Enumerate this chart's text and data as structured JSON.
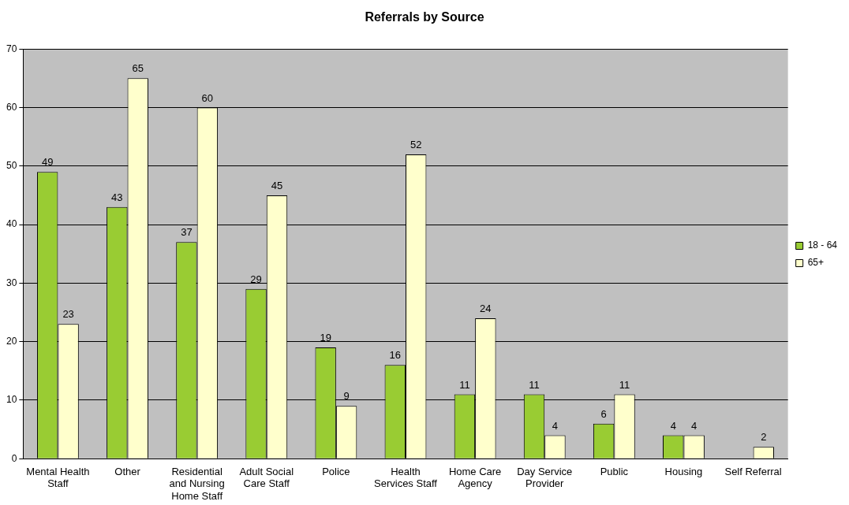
{
  "chart_data": {
    "type": "bar",
    "title": "Referrals by Source",
    "categories": [
      "Mental Health Staff",
      "Other",
      "Residential and Nursing Home Staff",
      "Adult Social Care Staff",
      "Police",
      "Health Services Staff",
      "Home Care Agency",
      "Day Service Provider",
      "Public",
      "Housing",
      "Self Referral"
    ],
    "series": [
      {
        "name": "18 - 64",
        "color": "#99cc33",
        "values": [
          49,
          43,
          37,
          29,
          19,
          16,
          11,
          11,
          6,
          4,
          null
        ]
      },
      {
        "name": "65+",
        "color": "#ffffcc",
        "values": [
          23,
          65,
          60,
          45,
          9,
          52,
          24,
          4,
          11,
          4,
          2
        ]
      }
    ],
    "ylim": [
      0,
      70
    ],
    "yticks": [
      0,
      10,
      20,
      30,
      40,
      50,
      60,
      70
    ],
    "grid": "y",
    "legend": "right",
    "data_labels": true
  }
}
